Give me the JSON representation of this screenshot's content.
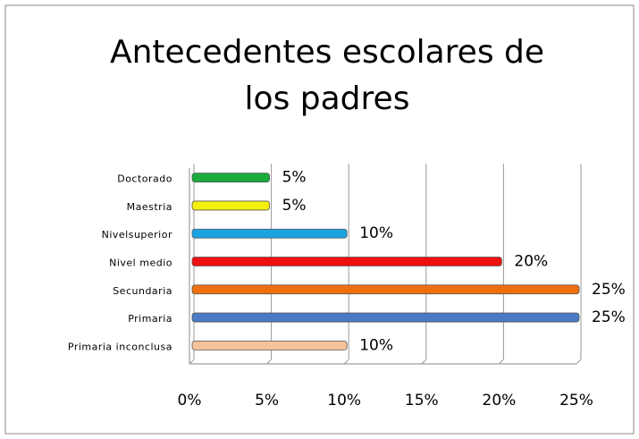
{
  "chart_data": {
    "type": "bar",
    "orientation": "horizontal",
    "title": [
      "Antecedentes escolares de",
      "los padres"
    ],
    "categories": [
      "Doctorado",
      "Maestria",
      "Nivelsuperior",
      "Nivel medio",
      "Secundaria",
      "Primaria",
      "Primaria inconclusa"
    ],
    "values": [
      5,
      5,
      10,
      20,
      25,
      25,
      10
    ],
    "value_labels": [
      "5%",
      "5%",
      "10%",
      "20%",
      "25%",
      "25%",
      "10%"
    ],
    "colors": [
      "#1aab3c",
      "#f4f10f",
      "#1aa3e0",
      "#ee1111",
      "#ef6f0f",
      "#4a7ac4",
      "#f5c39a"
    ],
    "xlim": [
      0,
      25
    ],
    "xticks": [
      {
        "value": 0,
        "label": "0%"
      },
      {
        "value": 5,
        "label": "5%"
      },
      {
        "value": 10,
        "label": "10%"
      },
      {
        "value": 15,
        "label": "15%"
      },
      {
        "value": 20,
        "label": "20%"
      },
      {
        "value": 25,
        "label": "25%"
      }
    ],
    "grid": true
  }
}
